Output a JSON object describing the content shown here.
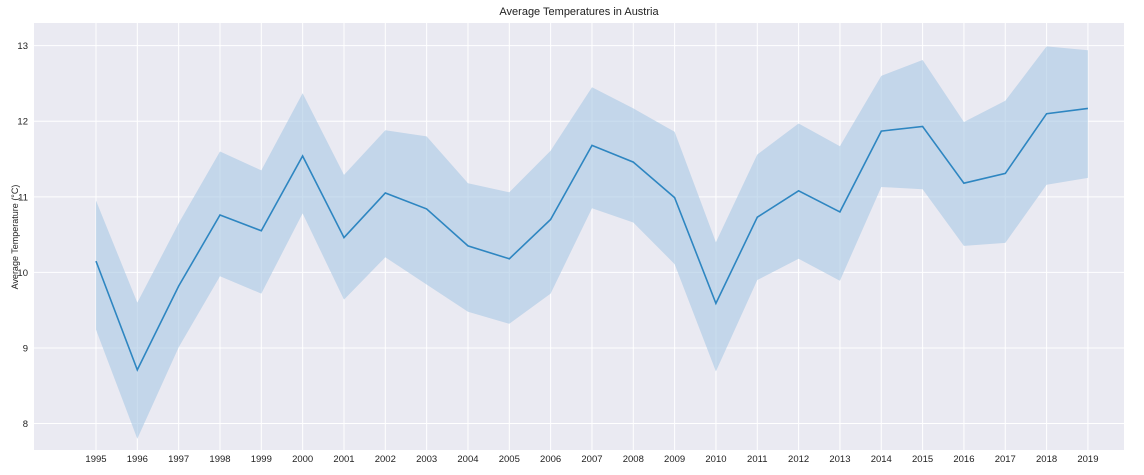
{
  "chart_data": {
    "type": "line",
    "title": "Average Temperatures in Austria",
    "xlabel": "",
    "ylabel": "Average Temperature (°C)",
    "x": [
      "1995",
      "1996",
      "1997",
      "1998",
      "1999",
      "2000",
      "2001",
      "2002",
      "2003",
      "2004",
      "2005",
      "2006",
      "2007",
      "2008",
      "2009",
      "2010",
      "2011",
      "2012",
      "2013",
      "2014",
      "2015",
      "2016",
      "2017",
      "2018",
      "2019"
    ],
    "yticks": [
      "8",
      "9",
      "10",
      "11",
      "12",
      "13"
    ],
    "ylim": [
      7.65,
      13.3
    ],
    "grid": true,
    "series": [
      {
        "values": [
          10.15,
          8.71,
          9.82,
          10.76,
          10.55,
          11.54,
          10.46,
          11.05,
          10.84,
          10.35,
          10.18,
          10.7,
          11.68,
          11.46,
          10.99,
          9.59,
          10.73,
          11.08,
          10.8,
          11.87,
          11.93,
          11.18,
          11.31,
          12.1,
          12.17
        ],
        "ci_upper": [
          10.95,
          9.6,
          10.65,
          11.6,
          11.35,
          12.37,
          11.29,
          11.88,
          11.8,
          11.18,
          11.06,
          11.61,
          12.45,
          12.17,
          11.86,
          10.4,
          11.56,
          11.97,
          11.67,
          12.6,
          12.81,
          11.99,
          12.27,
          12.99,
          12.94
        ],
        "ci_lower": [
          9.24,
          7.8,
          9.01,
          9.95,
          9.72,
          10.78,
          9.64,
          10.2,
          9.84,
          9.48,
          9.32,
          9.72,
          10.85,
          10.66,
          10.11,
          8.69,
          9.9,
          10.18,
          9.89,
          11.13,
          11.1,
          10.35,
          10.39,
          11.16,
          11.25
        ],
        "color": "#2e86c1",
        "band_color": "#a9c8e4"
      }
    ],
    "plot_background": "#eaeaf2",
    "grid_color": "#ffffff"
  }
}
